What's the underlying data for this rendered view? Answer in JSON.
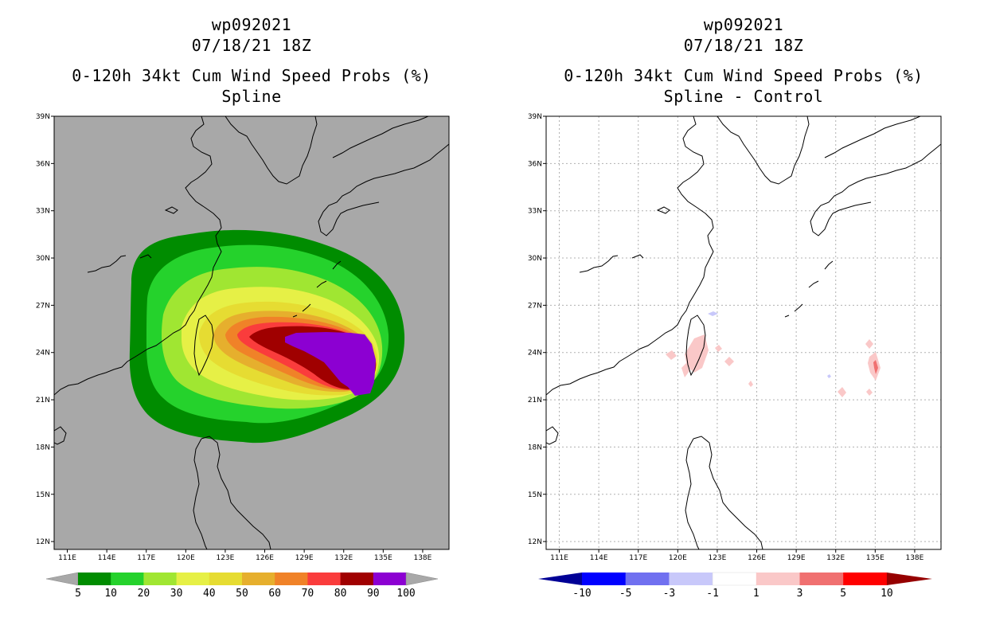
{
  "colors": {
    "land_left": "#a8a8a8",
    "coast": "#000000",
    "grid": "#b0b0b0"
  },
  "left_panel": {
    "title_lines": [
      "wp092021",
      "07/18/21 18Z",
      "0-120h 34kt Cum Wind Speed Probs (%)",
      "Spline"
    ],
    "colorbar": {
      "labels": [
        "5",
        "10",
        "20",
        "30",
        "40",
        "50",
        "60",
        "70",
        "80",
        "90",
        "100"
      ],
      "colors": [
        "#008c00",
        "#25d22c",
        "#a0e632",
        "#e6f046",
        "#e6dc32",
        "#e6af2d",
        "#f08228",
        "#fa3c3c",
        "#a00000",
        "#8c00d2"
      ]
    }
  },
  "right_panel": {
    "title_lines": [
      "wp092021",
      "07/18/21 18Z",
      "0-120h 34kt Cum Wind Speed Probs (%)",
      "Spline - Control"
    ],
    "colorbar": {
      "labels": [
        "-10",
        "-5",
        "-3",
        "-1",
        "1",
        "3",
        "5",
        "10"
      ],
      "colors": [
        "#0000ff",
        "#7070f0",
        "#c8c8fa",
        "#ffffff",
        "#fac8c8",
        "#f07070",
        "#ff0000"
      ],
      "low_color": "#000096",
      "high_color": "#960000"
    }
  },
  "map": {
    "lon_labels": [
      "111E",
      "114E",
      "117E",
      "120E",
      "123E",
      "126E",
      "129E",
      "132E",
      "135E",
      "138E"
    ],
    "lat_labels": [
      "39N",
      "36N",
      "33N",
      "30N",
      "27N",
      "24N",
      "21N",
      "18N",
      "15N",
      "12N"
    ],
    "lon_values": [
      111,
      114,
      117,
      120,
      123,
      126,
      129,
      132,
      135,
      138
    ],
    "lat_values": [
      39,
      36,
      33,
      30,
      27,
      24,
      21,
      18,
      15,
      12
    ],
    "lon_range": [
      110,
      140
    ],
    "lat_range": [
      11.5,
      39
    ]
  }
}
